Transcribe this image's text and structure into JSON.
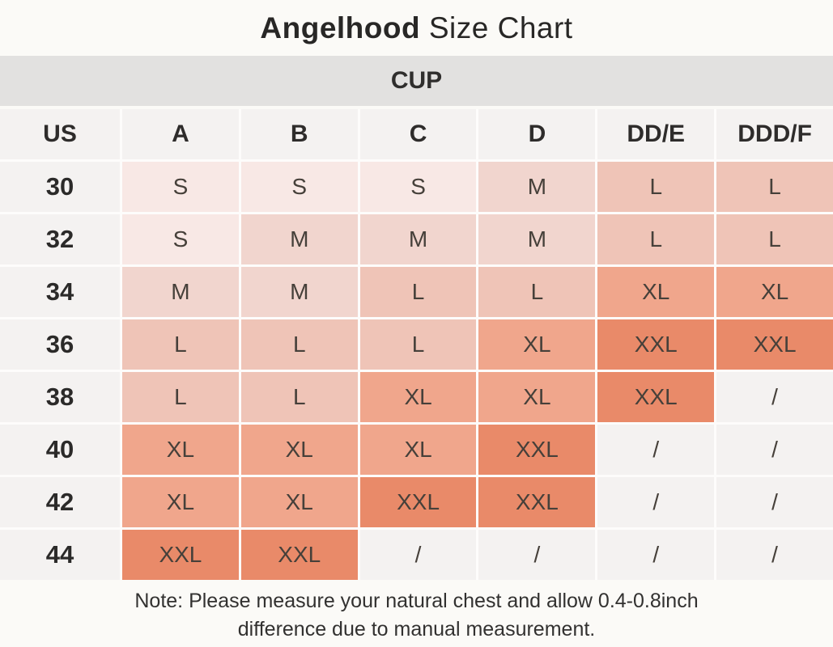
{
  "header": {
    "brand": "Angelhood",
    "title_rest": " Size Chart"
  },
  "chart_data": {
    "type": "table",
    "title": "Angelhood Size Chart",
    "group_header": "CUP",
    "columns": [
      "US",
      "A",
      "B",
      "C",
      "D",
      "DD/E",
      "DDD/F"
    ],
    "rows": [
      {
        "us": "30",
        "sizes": [
          "S",
          "S",
          "S",
          "M",
          "L",
          "L"
        ]
      },
      {
        "us": "32",
        "sizes": [
          "S",
          "M",
          "M",
          "M",
          "L",
          "L"
        ]
      },
      {
        "us": "34",
        "sizes": [
          "M",
          "M",
          "L",
          "L",
          "XL",
          "XL"
        ]
      },
      {
        "us": "36",
        "sizes": [
          "L",
          "L",
          "L",
          "XL",
          "XXL",
          "XXL"
        ]
      },
      {
        "us": "38",
        "sizes": [
          "L",
          "L",
          "XL",
          "XL",
          "XXL",
          "/"
        ]
      },
      {
        "us": "40",
        "sizes": [
          "XL",
          "XL",
          "XL",
          "XXL",
          "/",
          "/"
        ]
      },
      {
        "us": "42",
        "sizes": [
          "XL",
          "XL",
          "XXL",
          "XXL",
          "/",
          "/"
        ]
      },
      {
        "us": "44",
        "sizes": [
          "XXL",
          "XXL",
          "/",
          "/",
          "/",
          "/"
        ]
      }
    ],
    "note": "Note: Please measure your natural chest and allow 0.4-0.8inch difference due to manual measurement."
  },
  "footer": {
    "note_line1": "Note: Please measure your natural chest and allow 0.4-0.8inch",
    "note_line2": "difference due to manual measurement."
  },
  "colors": {
    "page_bg": "#fbfaf7",
    "band_bg": "#e2e1e0",
    "header_cell_bg": "#f4f2f1",
    "grid_line": "#fdfcfb",
    "size_fill": {
      "S": "#f8e8e5",
      "M": "#f1d5ce",
      "L": "#efc4b7",
      "XL": "#f0a68c",
      "XXL": "#e98a69",
      "/": "#f4f2f1"
    }
  }
}
